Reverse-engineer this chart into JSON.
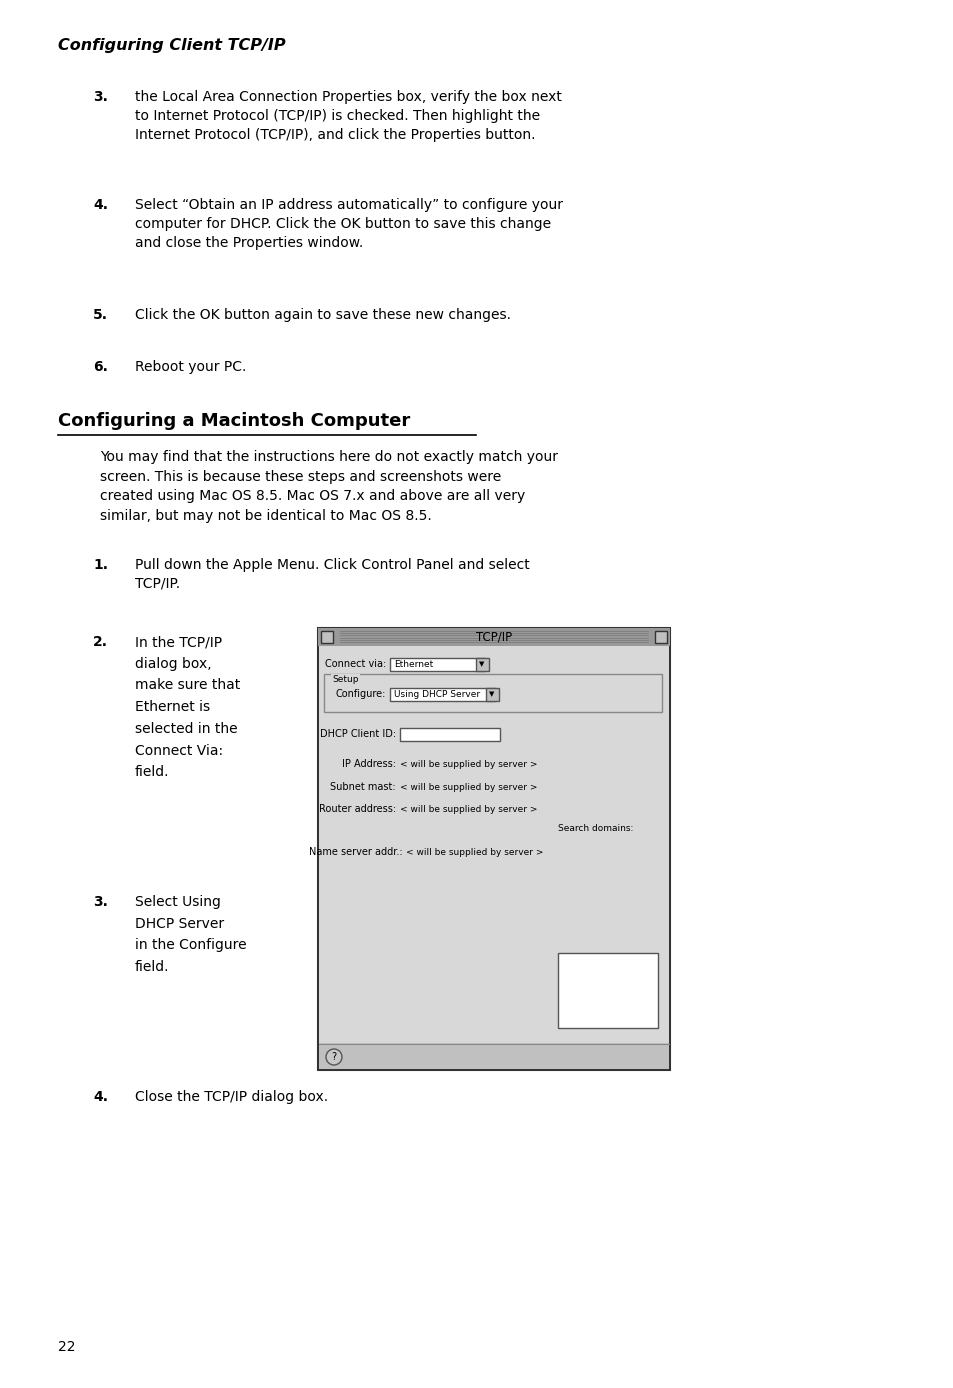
{
  "bg_color": "#ffffff",
  "header_italic": "Configuring Client TCP/IP",
  "header_font_size": 11.5,
  "section_title": "Configuring a Macintosh Computer",
  "section_title_font_size": 13,
  "body_font_size": 10,
  "small_font_size": 7,
  "page_number": "22",
  "dialog_title": "TCP/IP"
}
